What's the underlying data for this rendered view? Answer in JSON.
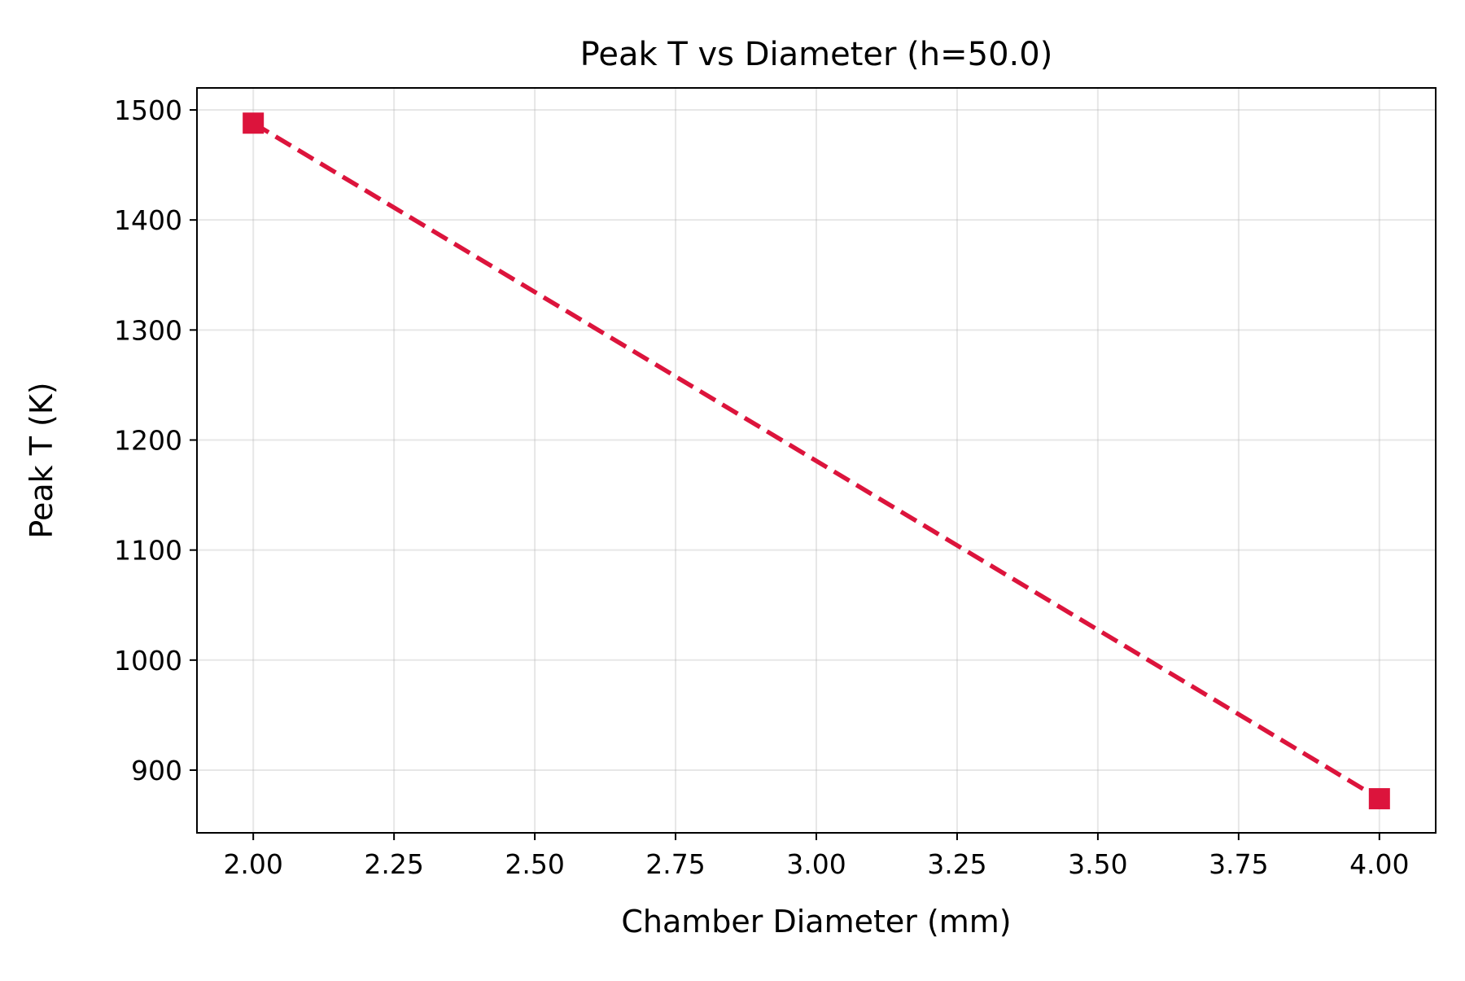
{
  "chart_data": {
    "type": "line",
    "title": "Peak T vs Diameter (h=50.0)",
    "xlabel": "Chamber Diameter (mm)",
    "ylabel": "Peak T (K)",
    "xlim": [
      1.9,
      4.1
    ],
    "ylim": [
      843,
      1520
    ],
    "xticks": [
      2.0,
      2.25,
      2.5,
      2.75,
      3.0,
      3.25,
      3.5,
      3.75,
      4.0
    ],
    "xtick_labels": [
      "2.00",
      "2.25",
      "2.50",
      "2.75",
      "3.00",
      "3.25",
      "3.50",
      "3.75",
      "4.00"
    ],
    "yticks": [
      900,
      1000,
      1100,
      1200,
      1300,
      1400,
      1500
    ],
    "ytick_labels": [
      "900",
      "1000",
      "1100",
      "1200",
      "1300",
      "1400",
      "1500"
    ],
    "grid": true,
    "series": [
      {
        "name": "Peak T",
        "x": [
          2.0,
          4.0
        ],
        "values": [
          1488,
          874
        ],
        "color": "#dc143c",
        "linestyle": "dashed",
        "marker": "square"
      }
    ]
  }
}
